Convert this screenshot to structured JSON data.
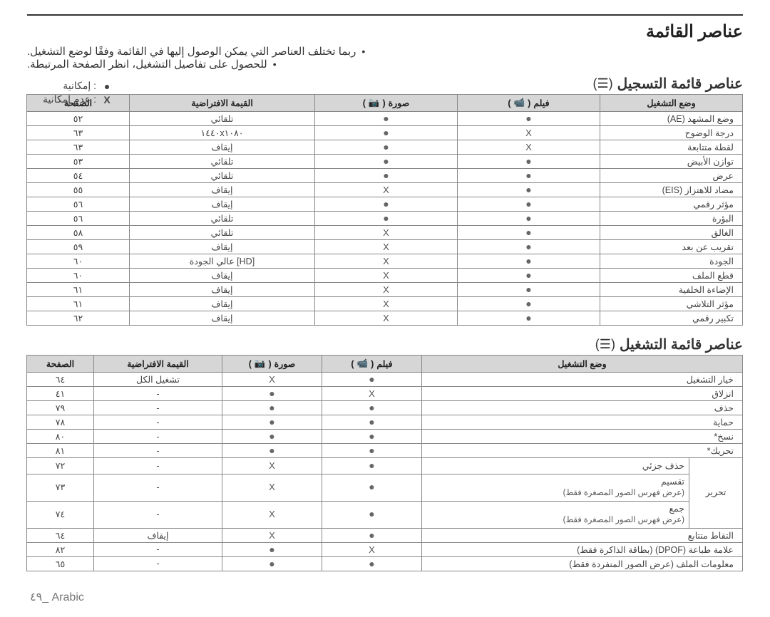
{
  "page": {
    "title": "عناصر القائمة",
    "bullets": [
      "ربما تختلف العناصر التي يمكن الوصول إليها في القائمة وفقًا لوضع التشغيل.",
      "للحصول على تفاصيل التشغيل، انظر الصفحة المرتبطة."
    ],
    "legend": {
      "available": {
        "mark": "●",
        "label": ": إمكانية"
      },
      "not_available": {
        "mark": "X",
        "label": ": عدم إمكانية"
      }
    },
    "footer": "٤٩_ Arabic"
  },
  "icons": {
    "menu": "☰",
    "video": "📹",
    "photo": "📷"
  },
  "columns_rec": {
    "mode": "وضع التشغيل",
    "video": "فيلم",
    "photo": "صورة",
    "default": "القيمة الافتراضية",
    "page": "الصفحة"
  },
  "columns_play": {
    "mode": "وضع التشغيل",
    "video": "فيلم",
    "photo": "صورة",
    "default": "القيمة الافتراضية",
    "page": "الصفحة"
  },
  "section_rec": {
    "title": "عناصر قائمة التسجيل",
    "col_widths": {
      "mode": 220,
      "video": 200,
      "photo": 200,
      "default": 260,
      "page": 120
    },
    "rows": [
      {
        "mode": "وضع المشهد (AE)",
        "video": "dot",
        "photo": "dot",
        "default": "تلقائي",
        "page": "٥٢"
      },
      {
        "mode": "درجة الوضوح",
        "video": "x",
        "photo": "dot",
        "default": "١٤٤٠x١٠٨٠",
        "page": "٦٣"
      },
      {
        "mode": "لقطة متتابعة",
        "video": "x",
        "photo": "dot",
        "default": "إيقاف",
        "page": "٦٣"
      },
      {
        "mode": "توازن الأبيض",
        "video": "dot",
        "photo": "dot",
        "default": "تلقائي",
        "page": "٥٣"
      },
      {
        "mode": "عرض",
        "video": "dot",
        "photo": "dot",
        "default": "تلقائي",
        "page": "٥٤"
      },
      {
        "mode": "مضاد للاهتزاز (EIS)",
        "video": "dot",
        "photo": "x",
        "default": "إيقاف",
        "page": "٥٥"
      },
      {
        "mode": "مؤثر رقمي",
        "video": "dot",
        "photo": "dot",
        "default": "إيقاف",
        "page": "٥٦"
      },
      {
        "mode": "البؤرة",
        "video": "dot",
        "photo": "dot",
        "default": "تلقائي",
        "page": "٥٦"
      },
      {
        "mode": "الغالق",
        "video": "dot",
        "photo": "x",
        "default": "تلقائي",
        "page": "٥٨"
      },
      {
        "mode": "تقريب عن بعد",
        "video": "dot",
        "photo": "x",
        "default": "إيقاف",
        "page": "٥٩"
      },
      {
        "mode": "الجودة",
        "video": "dot",
        "photo": "x",
        "default": "[HD] عالي الجودة",
        "page": "٦٠"
      },
      {
        "mode": "قطع الملف",
        "video": "dot",
        "photo": "x",
        "default": "إيقاف",
        "page": "٦٠"
      },
      {
        "mode": "الإضاءة الخلفية",
        "video": "dot",
        "photo": "x",
        "default": "إيقاف",
        "page": "٦١"
      },
      {
        "mode": "مؤثر التلاشي",
        "video": "dot",
        "photo": "x",
        "default": "إيقاف",
        "page": "٦١"
      },
      {
        "mode": "تكبير رقمي",
        "video": "dot",
        "photo": "x",
        "default": "إيقاف",
        "page": "٦٢"
      }
    ]
  },
  "section_play": {
    "title": "عناصر  قائمة التشغيل",
    "col_widths": {
      "mode_group": 90,
      "mode": 360,
      "video": 140,
      "photo": 140,
      "default": 180,
      "page": 94
    },
    "group_label": "تحرير",
    "rows": [
      {
        "group": false,
        "mode": "خيار التشغيل",
        "video": "dot",
        "photo": "x",
        "default": "تشغيل الكل",
        "page": "٦٤"
      },
      {
        "group": false,
        "mode": "انزلاق",
        "video": "x",
        "photo": "dot",
        "default": "-",
        "page": "٤١"
      },
      {
        "group": false,
        "mode": "حذف",
        "video": "dot",
        "photo": "dot",
        "default": "-",
        "page": "٧٩"
      },
      {
        "group": false,
        "mode": "حماية",
        "video": "dot",
        "photo": "dot",
        "default": "-",
        "page": "٧٨"
      },
      {
        "group": false,
        "mode": "نسخ*",
        "video": "dot",
        "photo": "dot",
        "default": "-",
        "page": "٨٠"
      },
      {
        "group": false,
        "mode": "تحريك*",
        "video": "dot",
        "photo": "dot",
        "default": "-",
        "page": "٨١"
      },
      {
        "group": "start",
        "rowspan": 3,
        "mode": "حذف جزئي",
        "video": "dot",
        "photo": "x",
        "default": "-",
        "page": "٧٢"
      },
      {
        "group": "mid",
        "mode": "تقسيم",
        "sub": "(عرض فهرس الصور المصغرة فقط)",
        "video": "dot",
        "photo": "x",
        "default": "-",
        "page": "٧٣"
      },
      {
        "group": "mid",
        "mode": "جمع",
        "sub": "(عرض فهرس الصور المصغرة فقط)",
        "video": "dot",
        "photo": "x",
        "default": "-",
        "page": "٧٤"
      },
      {
        "group": false,
        "mode": "التقاط متتابع",
        "video": "dot",
        "photo": "x",
        "default": "إيقاف",
        "page": "٦٤"
      },
      {
        "group": false,
        "mode": "علامة طباعة (DPOF) (بطاقة الذاكرة فقط)",
        "video": "x",
        "photo": "dot",
        "default": "-",
        "page": "٨٢"
      },
      {
        "group": false,
        "mode": "معلومات الملف (عرض الصور المنفردة فقط)",
        "video": "dot",
        "photo": "dot",
        "default": "-",
        "page": "٦٥"
      }
    ]
  },
  "colors": {
    "header_bg": "#d6d6d6",
    "border": "#888888",
    "text": "#333333",
    "dot": "#666666"
  }
}
